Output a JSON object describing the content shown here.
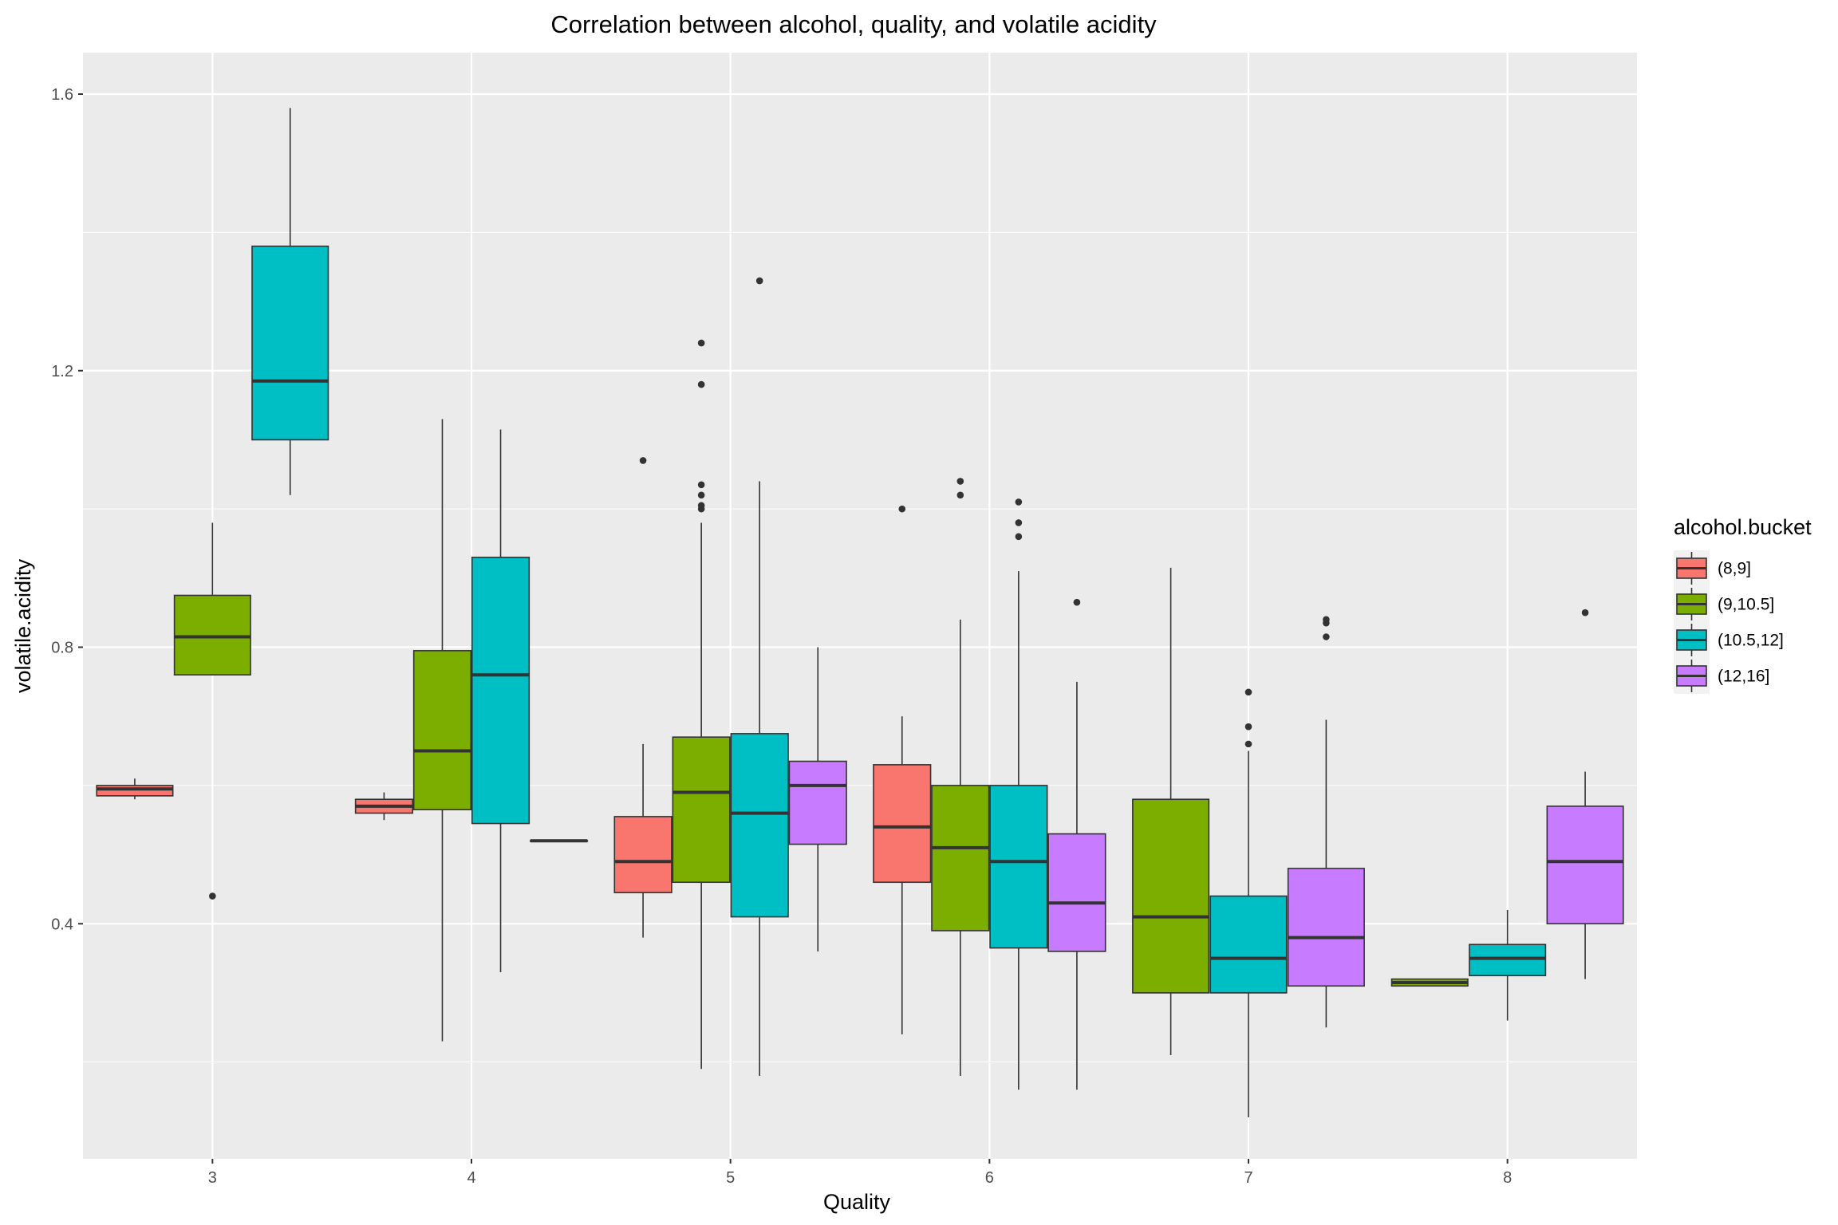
{
  "chart_data": {
    "type": "boxplot",
    "title": "Correlation between alcohol, quality, and volatile acidity",
    "xlabel": "Quality",
    "ylabel": "volatile.acidity",
    "categories": [
      "3",
      "4",
      "5",
      "6",
      "7",
      "8"
    ],
    "y_ticks": [
      "0.4",
      "0.8",
      "1.2",
      "1.6"
    ],
    "ylim": [
      0.06,
      1.66
    ],
    "grid": true,
    "legend": {
      "title": "alcohol.bucket",
      "position": "right"
    },
    "series": [
      {
        "name": "(8,9]",
        "color": "#F8766D",
        "boxes": [
          {
            "category": "3",
            "min": 0.58,
            "q1": 0.585,
            "median": 0.595,
            "q3": 0.6,
            "max": 0.61,
            "outliers": []
          },
          {
            "category": "4",
            "min": 0.55,
            "q1": 0.56,
            "median": 0.57,
            "q3": 0.58,
            "max": 0.59,
            "outliers": []
          },
          {
            "category": "5",
            "min": 0.38,
            "q1": 0.445,
            "median": 0.49,
            "q3": 0.555,
            "max": 0.66,
            "outliers": [
              1.07
            ]
          },
          {
            "category": "6",
            "min": 0.24,
            "q1": 0.46,
            "median": 0.54,
            "q3": 0.63,
            "max": 0.7,
            "outliers": [
              1.0
            ]
          },
          {
            "category": "7"
          },
          {
            "category": "8"
          }
        ]
      },
      {
        "name": "(9,10.5]",
        "color": "#7CAE00",
        "boxes": [
          {
            "category": "3",
            "min": 0.76,
            "q1": 0.76,
            "median": 0.815,
            "q3": 0.875,
            "max": 0.98,
            "outliers": [
              0.44
            ]
          },
          {
            "category": "4",
            "min": 0.23,
            "q1": 0.565,
            "median": 0.65,
            "q3": 0.795,
            "max": 1.13,
            "outliers": []
          },
          {
            "category": "5",
            "min": 0.19,
            "q1": 0.46,
            "median": 0.59,
            "q3": 0.67,
            "max": 0.98,
            "outliers": [
              1.0,
              1.005,
              1.02,
              1.035,
              1.18,
              1.24
            ]
          },
          {
            "category": "6",
            "min": 0.18,
            "q1": 0.39,
            "median": 0.51,
            "q3": 0.6,
            "max": 0.84,
            "outliers": [
              1.02,
              1.04
            ]
          },
          {
            "category": "7",
            "min": 0.21,
            "q1": 0.3,
            "median": 0.41,
            "q3": 0.58,
            "max": 0.915,
            "outliers": []
          },
          {
            "category": "8",
            "min": 0.31,
            "q1": 0.31,
            "median": 0.315,
            "q3": 0.32,
            "max": 0.32,
            "outliers": []
          }
        ]
      },
      {
        "name": "(10.5,12]",
        "color": "#00BFC4",
        "boxes": [
          {
            "category": "3",
            "min": 1.02,
            "q1": 1.1,
            "median": 1.185,
            "q3": 1.38,
            "max": 1.58,
            "outliers": []
          },
          {
            "category": "4",
            "min": 0.33,
            "q1": 0.545,
            "median": 0.76,
            "q3": 0.93,
            "max": 1.115,
            "outliers": []
          },
          {
            "category": "5",
            "min": 0.18,
            "q1": 0.41,
            "median": 0.56,
            "q3": 0.675,
            "max": 1.04,
            "outliers": [
              1.33
            ]
          },
          {
            "category": "6",
            "min": 0.16,
            "q1": 0.365,
            "median": 0.49,
            "q3": 0.6,
            "max": 0.91,
            "outliers": [
              0.96,
              0.98,
              1.01
            ]
          },
          {
            "category": "7",
            "min": 0.12,
            "q1": 0.3,
            "median": 0.35,
            "q3": 0.44,
            "max": 0.65,
            "outliers": [
              0.66,
              0.685,
              0.735
            ]
          },
          {
            "category": "8",
            "min": 0.26,
            "q1": 0.325,
            "median": 0.35,
            "q3": 0.37,
            "max": 0.42,
            "outliers": []
          }
        ]
      },
      {
        "name": "(12,16]",
        "color": "#C77CFF",
        "boxes": [
          {
            "category": "3"
          },
          {
            "category": "4",
            "min": 0.52,
            "q1": 0.52,
            "median": 0.52,
            "q3": 0.52,
            "max": 0.52,
            "outliers": []
          },
          {
            "category": "5",
            "min": 0.36,
            "q1": 0.515,
            "median": 0.6,
            "q3": 0.635,
            "max": 0.8,
            "outliers": []
          },
          {
            "category": "6",
            "min": 0.16,
            "q1": 0.36,
            "median": 0.43,
            "q3": 0.53,
            "max": 0.75,
            "outliers": [
              0.865
            ]
          },
          {
            "category": "7",
            "min": 0.25,
            "q1": 0.31,
            "median": 0.38,
            "q3": 0.48,
            "max": 0.695,
            "outliers": [
              0.815,
              0.835,
              0.84
            ]
          },
          {
            "category": "8",
            "min": 0.32,
            "q1": 0.4,
            "median": 0.49,
            "q3": 0.57,
            "max": 0.62,
            "outliers": [
              0.85
            ]
          }
        ]
      }
    ]
  }
}
